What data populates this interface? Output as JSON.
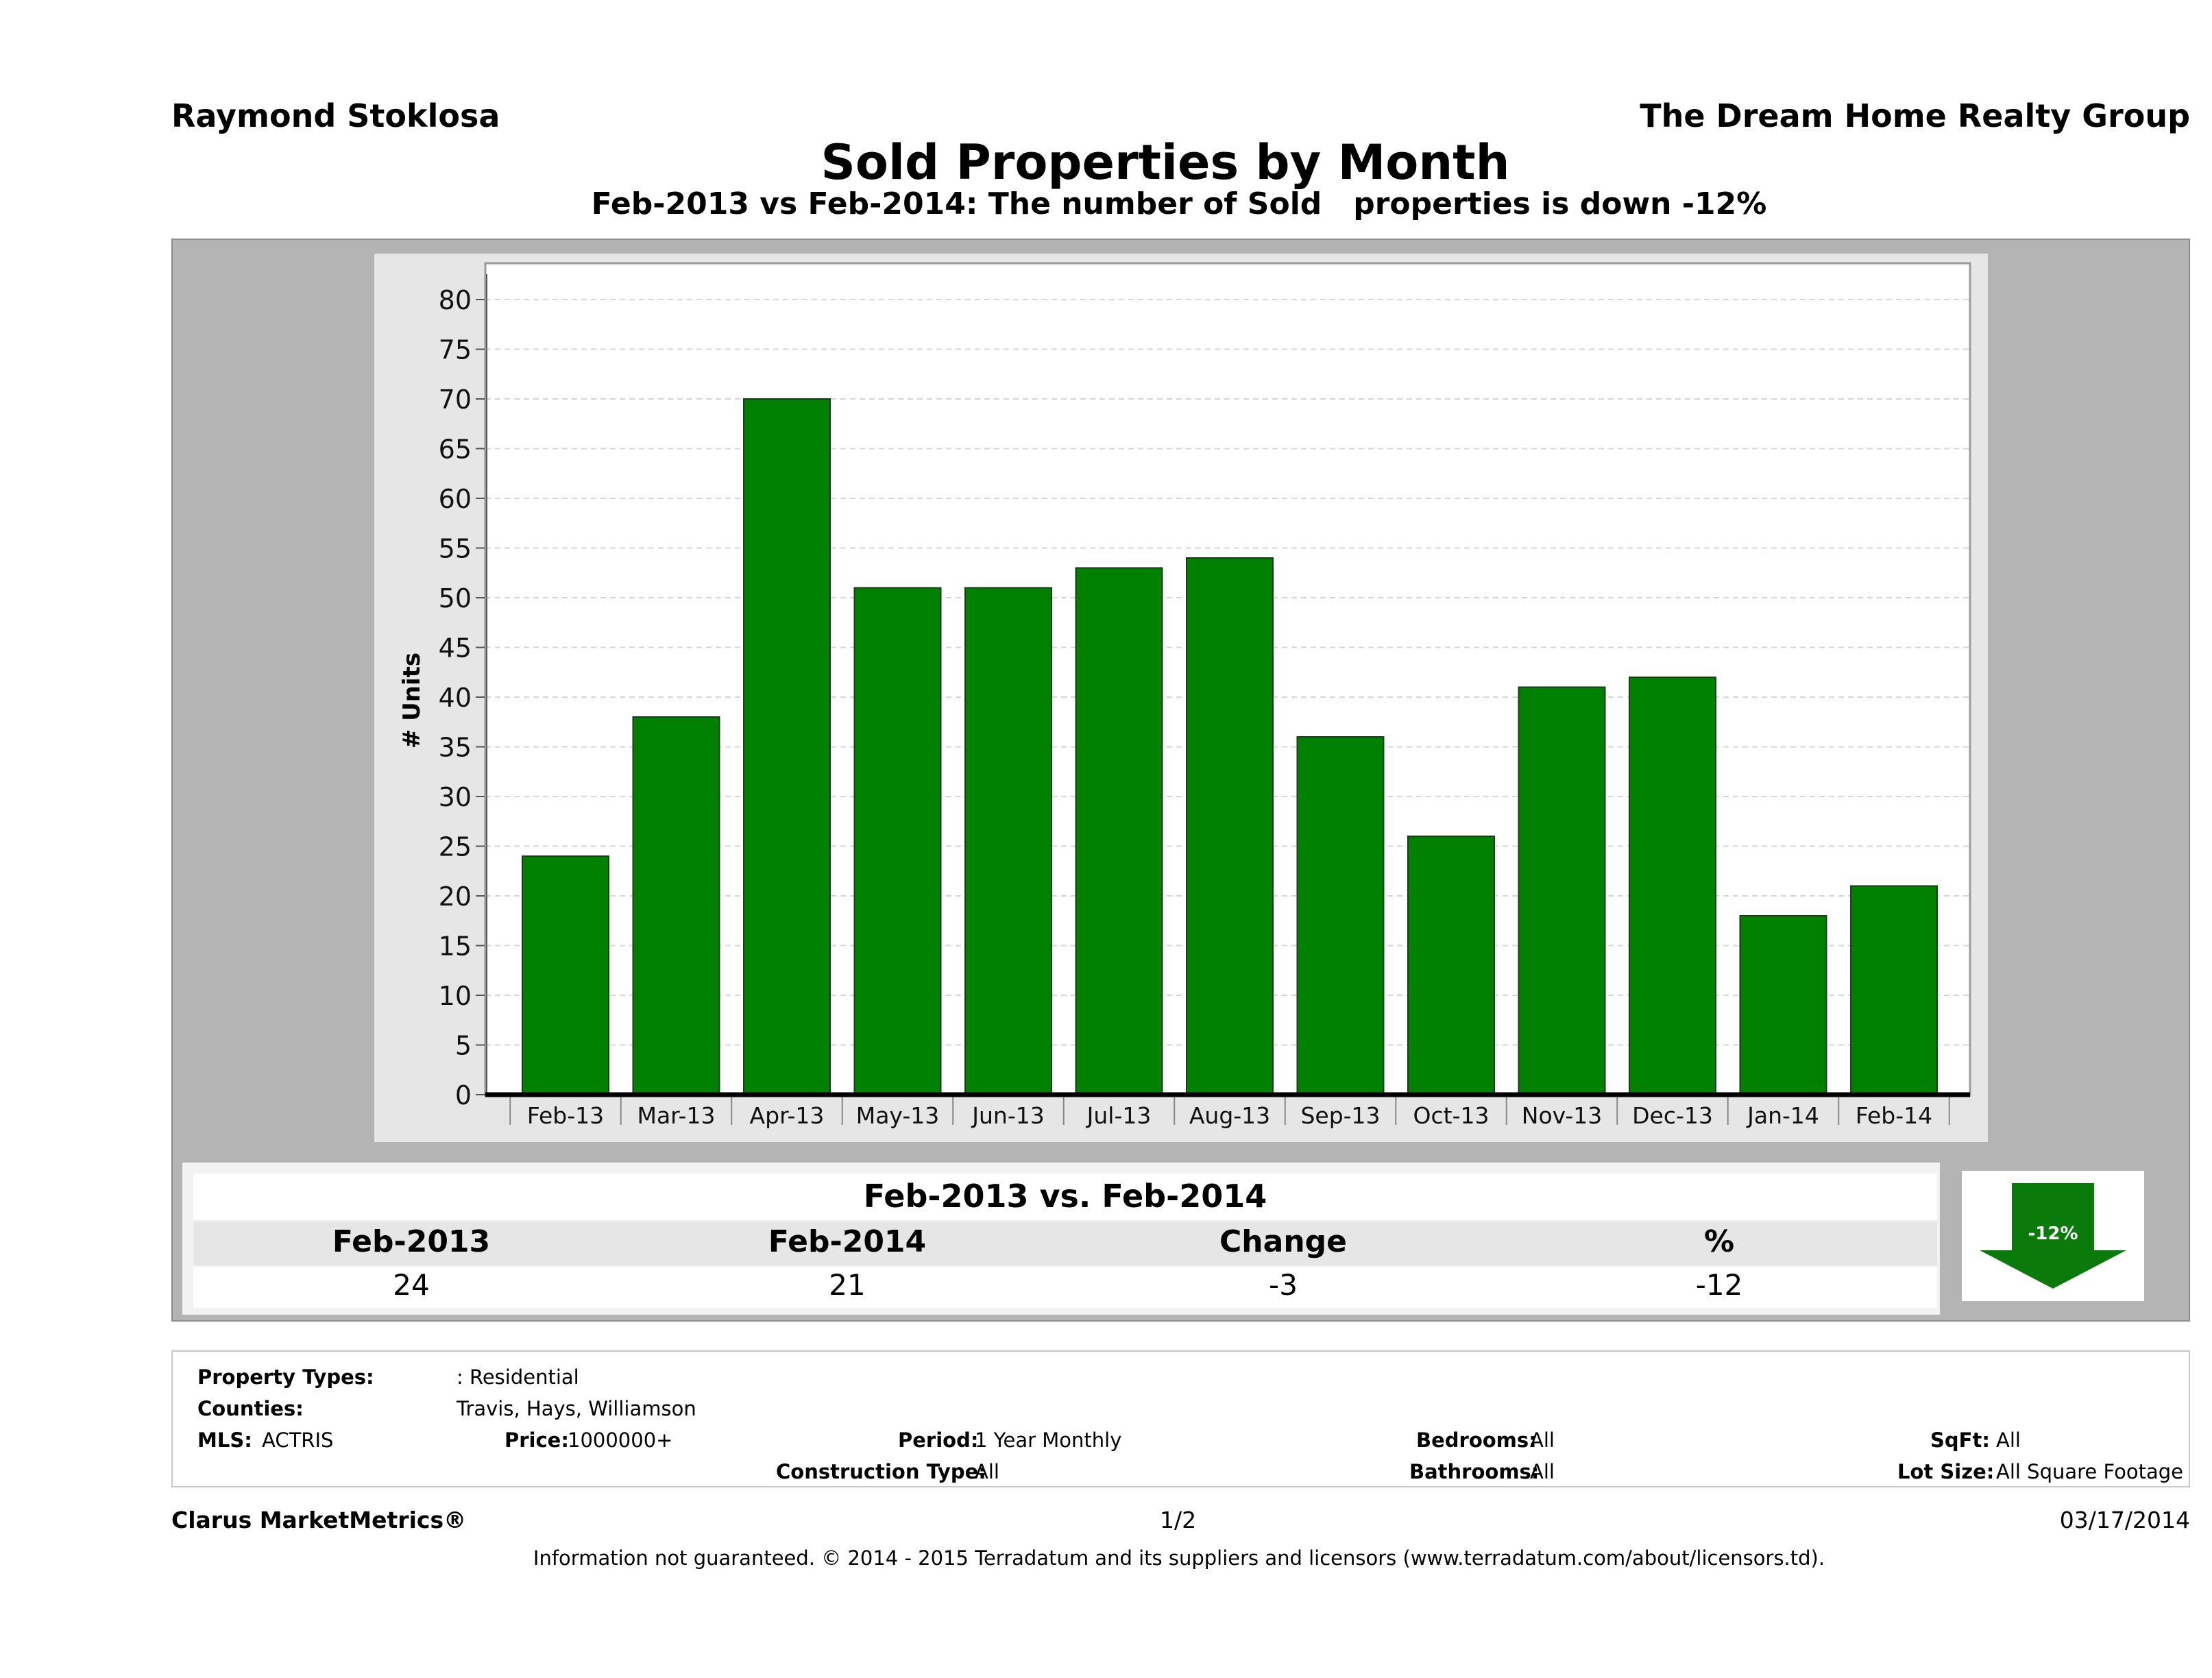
{
  "header": {
    "agent_name": "Raymond Stoklosa",
    "company_name": "The Dream Home Realty Group",
    "title": "Sold Properties by Month",
    "subtitle": "Feb-2013 vs Feb-2014: The number of Sold   properties is down -12%"
  },
  "chart_data": {
    "type": "bar",
    "categories": [
      "Feb-13",
      "Mar-13",
      "Apr-13",
      "May-13",
      "Jun-13",
      "Jul-13",
      "Aug-13",
      "Sep-13",
      "Oct-13",
      "Nov-13",
      "Dec-13",
      "Jan-14",
      "Feb-14"
    ],
    "values": [
      24,
      38,
      70,
      51,
      51,
      53,
      54,
      36,
      26,
      41,
      42,
      18,
      21
    ],
    "ylabel": "# Units",
    "ylim": [
      0,
      80
    ],
    "yticks": [
      0,
      5,
      10,
      15,
      20,
      25,
      30,
      35,
      40,
      45,
      50,
      55,
      60,
      65,
      70,
      75,
      80
    ],
    "grid": true,
    "bar_color": "#008000"
  },
  "comparison": {
    "title": "Feb-2013 vs. Feb-2014",
    "headers": [
      "Feb-2013",
      "Feb-2014",
      "Change",
      "%"
    ],
    "values": [
      "24",
      "21",
      "-3",
      "-12"
    ],
    "arrow_label": "-12%",
    "arrow_color": "#008000"
  },
  "filters": {
    "property_types_label": "Property Types:",
    "property_types_value": ": Residential",
    "counties_label": "Counties:",
    "counties_value": "Travis, Hays, Williamson",
    "mls_label": "MLS:",
    "mls_value": "ACTRIS",
    "price_label": "Price:",
    "price_value": "1000000+",
    "period_label": "Period:",
    "period_value": "1 Year Monthly",
    "construction_label": "Construction Type:",
    "construction_value": "All",
    "bedrooms_label": "Bedrooms:",
    "bedrooms_value": "All",
    "bathrooms_label": "Bathrooms:",
    "bathrooms_value": "All",
    "sqft_label": "SqFt:",
    "sqft_value": "All",
    "lotsize_label": "Lot Size:",
    "lotsize_value": "All Square Footage"
  },
  "footer": {
    "brand": "Clarus MarketMetrics®",
    "page": "1/2",
    "date": "03/17/2014",
    "disclaimer": "Information not guaranteed. © 2014 - 2015 Terradatum and its suppliers and licensors (www.terradatum.com/about/licensors.td)."
  }
}
